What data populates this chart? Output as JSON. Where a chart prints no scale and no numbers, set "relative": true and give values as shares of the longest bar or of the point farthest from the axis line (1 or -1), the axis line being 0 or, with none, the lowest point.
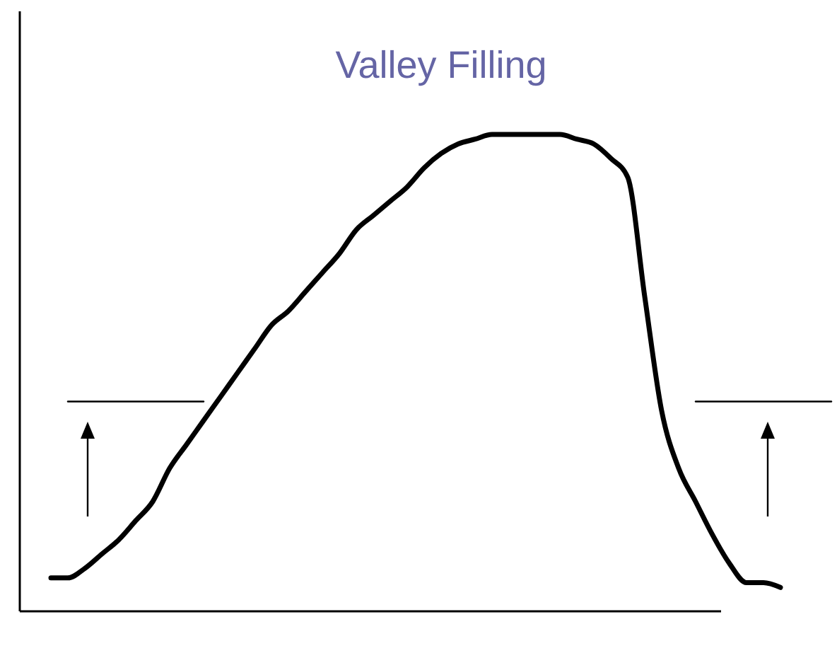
{
  "chart_data": {
    "type": "line",
    "title": "Valley Filling",
    "relative": true,
    "categories": [
      null,
      null,
      null,
      null,
      null,
      null,
      null,
      null,
      null,
      null,
      null,
      null,
      null,
      null,
      null,
      null,
      null,
      null,
      null,
      null,
      null,
      null,
      null,
      null,
      null,
      null,
      null,
      null,
      null,
      null,
      null,
      null,
      null,
      null,
      null,
      null,
      null,
      null,
      null,
      null,
      null,
      null,
      null,
      null,
      null,
      null,
      null
    ],
    "series": [
      {
        "color": "#000000",
        "values": [
          0.07,
          0.07,
          0.09,
          0.12,
          0.15,
          0.19,
          0.23,
          0.3,
          0.35,
          0.4,
          0.45,
          0.5,
          0.55,
          0.6,
          0.63,
          0.67,
          0.71,
          0.75,
          0.8,
          0.83,
          0.86,
          0.89,
          0.93,
          0.96,
          0.98,
          0.99,
          1,
          1,
          1,
          1,
          1,
          0.99,
          0.98,
          0.95,
          0.91,
          0.66,
          0.42,
          0.3,
          0.23,
          0.16,
          0.1,
          0.06,
          0.06,
          0.05,
          null,
          null,
          null
        ]
      },
      {
        "color": "#000000",
        "values": [
          null,
          0.44,
          0.44,
          0.44,
          0.44,
          0.44,
          0.44,
          0.44,
          0.44,
          0.44,
          null,
          null,
          null,
          null,
          null,
          null,
          null,
          null,
          null,
          null,
          null,
          null,
          null,
          null,
          null,
          null,
          null,
          null,
          null,
          null,
          null,
          null,
          null,
          null,
          null,
          null,
          null,
          null,
          null,
          null,
          null,
          null,
          null,
          null,
          null,
          null,
          null
        ]
      },
      {
        "color": "#000000",
        "values": [
          null,
          null,
          null,
          null,
          null,
          null,
          null,
          null,
          null,
          null,
          null,
          null,
          null,
          null,
          null,
          null,
          null,
          null,
          null,
          null,
          null,
          null,
          null,
          null,
          null,
          null,
          null,
          null,
          null,
          null,
          null,
          null,
          null,
          null,
          null,
          null,
          null,
          null,
          0.44,
          0.44,
          0.44,
          0.44,
          0.44,
          0.44,
          0.44,
          0.44,
          0.44
        ]
      }
    ]
  }
}
